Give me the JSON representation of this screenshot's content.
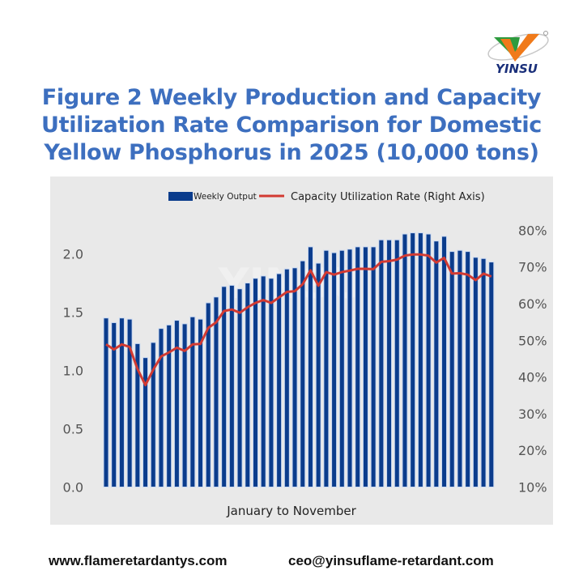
{
  "logo": {
    "text": "YINSU",
    "colors": {
      "green": "#2e9b3e",
      "orange": "#f07a1a",
      "text": "#1a2f7a"
    }
  },
  "title_lines": [
    "Figure 2  Weekly Production and Capacity",
    "Utilization Rate Comparison for Domestic",
    "Yellow Phosphorus in 2025 (10,000 tons)"
  ],
  "footer": {
    "website": "www.flameretardantys.com",
    "email": "ceo@yinsuflame-retardant.com"
  },
  "chart_data": {
    "type": "bar+line",
    "title": "Figure 2  Weekly Production and Capacity Utilization Rate Comparison for Domestic Yellow Phosphorus in 2025 (10,000 tons)",
    "xlabel": "January to November",
    "ylabel": "",
    "ylim": [
      0,
      2.2
    ],
    "y2lim": [
      10,
      80
    ],
    "yticks": [
      "0.0",
      "0.5",
      "1.0",
      "1.5",
      "2.0"
    ],
    "y2ticks": [
      "10%",
      "20%",
      "30%",
      "40%",
      "50%",
      "60%",
      "70%",
      "80%"
    ],
    "legend_position": "top",
    "grid": false,
    "colors": {
      "bar": "#0b3c8c",
      "bar_edge": "#c9d9f2",
      "line": "#d23a32",
      "background": "#e9e9e9"
    },
    "series": [
      {
        "name": "Weekly Output",
        "type": "bar",
        "axis": "left",
        "values": [
          1.45,
          1.41,
          1.45,
          1.44,
          1.23,
          1.11,
          1.24,
          1.36,
          1.39,
          1.43,
          1.4,
          1.46,
          1.44,
          1.58,
          1.63,
          1.72,
          1.73,
          1.7,
          1.75,
          1.79,
          1.81,
          1.79,
          1.83,
          1.87,
          1.88,
          1.94,
          2.06,
          1.92,
          2.03,
          2.01,
          2.03,
          2.04,
          2.06,
          2.06,
          2.06,
          2.12,
          2.12,
          2.12,
          2.17,
          2.18,
          2.18,
          2.17,
          2.11,
          2.15,
          2.02,
          2.03,
          2.02,
          1.97,
          1.96,
          1.93
        ]
      },
      {
        "name": "Capacity Utilization Rate (Right Axis)",
        "type": "line",
        "axis": "right",
        "values": [
          48.9,
          47.5,
          48.9,
          48.2,
          42.2,
          37.8,
          42.0,
          45.6,
          46.7,
          48.0,
          47.1,
          48.9,
          49.0,
          53.4,
          54.9,
          58.0,
          58.4,
          57.5,
          59.0,
          60.2,
          61.0,
          60.2,
          61.7,
          63.2,
          63.4,
          65.3,
          69.1,
          64.9,
          68.6,
          67.9,
          68.6,
          69.0,
          69.5,
          69.5,
          69.4,
          71.4,
          71.6,
          72.0,
          73.1,
          73.4,
          73.4,
          73.1,
          71.2,
          72.5,
          68.2,
          68.3,
          67.9,
          66.4,
          68.2,
          67.4
        ]
      }
    ],
    "watermark": "YINSU"
  }
}
